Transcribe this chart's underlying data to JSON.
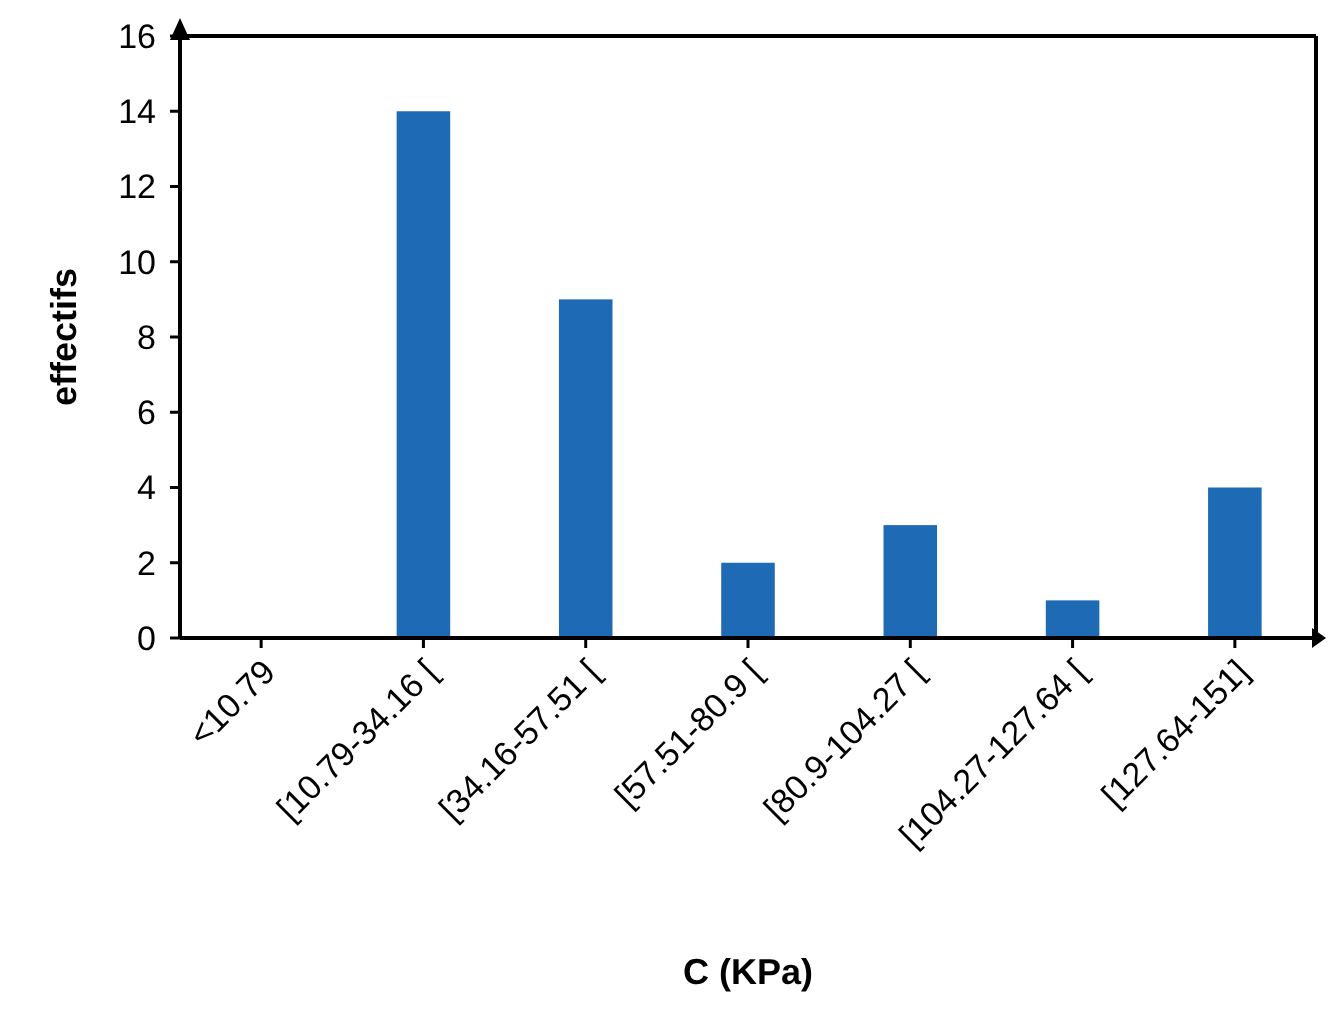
{
  "chart_data": {
    "type": "bar",
    "xlabel": "C (KPa)",
    "ylabel": "effectifs",
    "categories": [
      "<10.79",
      "[10.79-34.16 [",
      "[34.16-57.51 [",
      "[57.51-80.9 [",
      "[80.9-104.27 [",
      "[104.27-127.64 [",
      "[127.64-151]"
    ],
    "values": [
      0,
      14,
      9,
      2,
      3,
      1,
      4
    ],
    "color": "#1f6ab4",
    "ylim": [
      0,
      16
    ],
    "yticks": [
      0,
      2,
      4,
      6,
      8,
      10,
      12,
      14,
      16
    ],
    "grid": false
  }
}
